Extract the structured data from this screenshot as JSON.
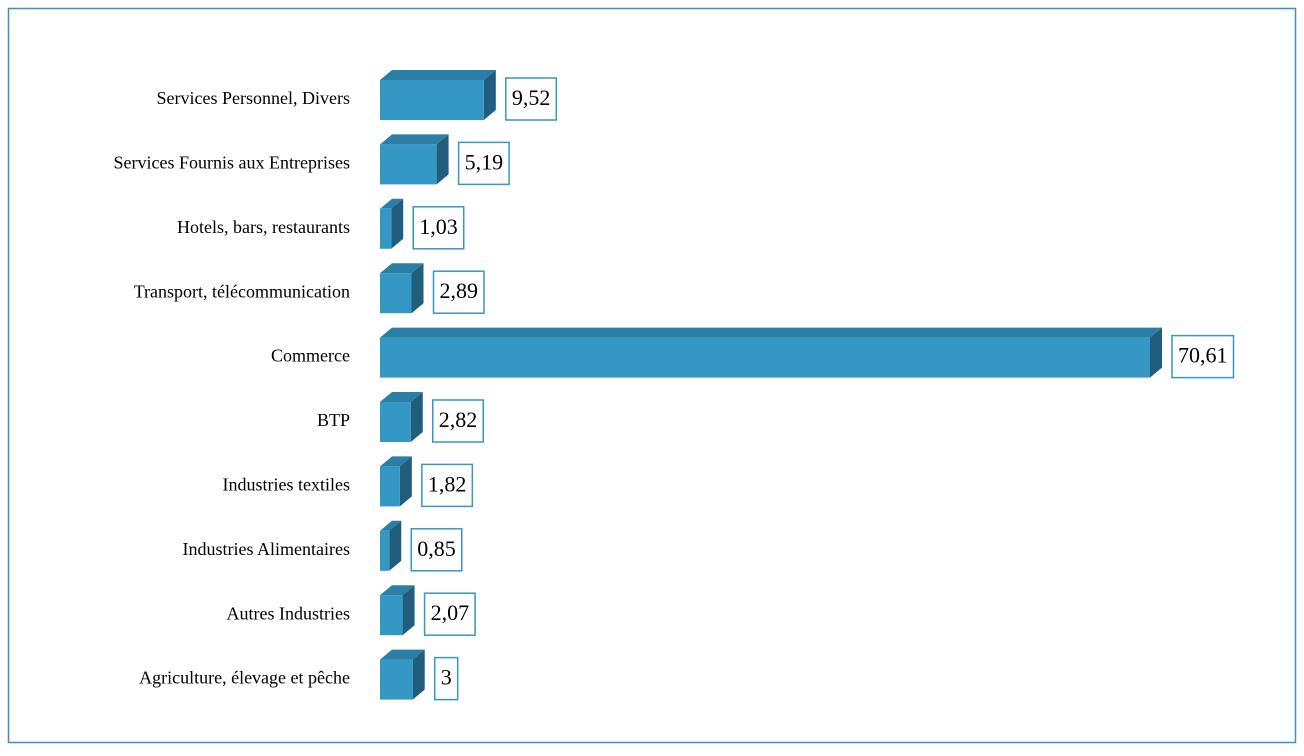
{
  "chart_data": {
    "type": "bar",
    "orientation": "horizontal",
    "color": "#3597c4",
    "categories": [
      "Services Personnel, Divers",
      "Services Fournis aux Entreprises",
      "Hotels, bars, restaurants",
      "Transport, télécommunication",
      "Commerce",
      "BTP",
      "Industries textiles",
      "Industries Alimentaires",
      "Autres Industries",
      "Agriculture, élevage et pêche"
    ],
    "values": [
      9.52,
      5.19,
      1.03,
      2.89,
      70.61,
      2.82,
      1.82,
      0.85,
      2.07,
      3
    ],
    "value_labels": [
      "9,52",
      "5,19",
      "1,03",
      "2,89",
      "70,61",
      "2,82",
      "1,82",
      "0,85",
      "2,07",
      "3"
    ]
  }
}
